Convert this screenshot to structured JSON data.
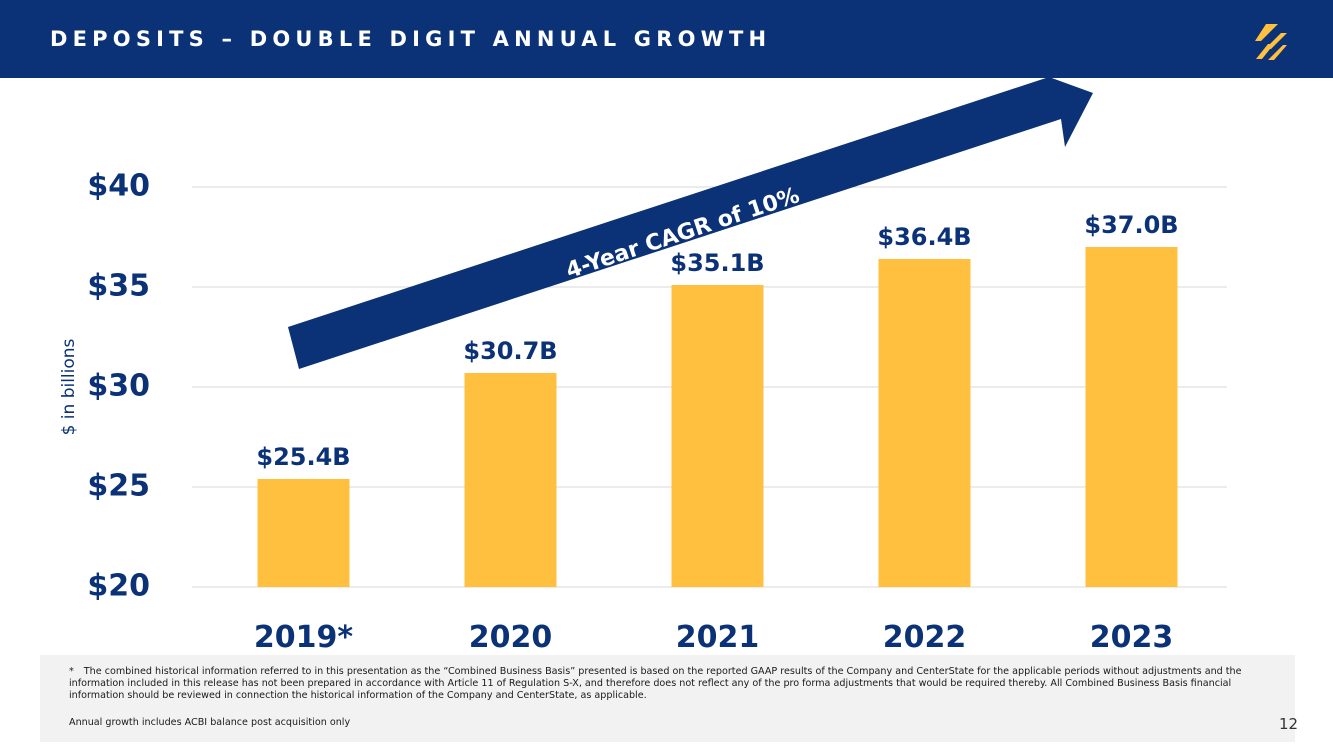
{
  "header": {
    "title": "DEPOSITS – DOUBLE DIGIT ANNUAL GROWTH"
  },
  "colors": {
    "navy": "#0b3277",
    "bar": "#ffc03f",
    "grid": "#d9d9d9",
    "logo": "#ffc03f"
  },
  "icons": {
    "logo": "company-logo-icon"
  },
  "chart_data": {
    "type": "bar",
    "title": "DEPOSITS – DOUBLE DIGIT ANNUAL GROWTH",
    "categories": [
      "2019*",
      "2020",
      "2021",
      "2022",
      "2023"
    ],
    "values": [
      25.4,
      30.7,
      35.1,
      36.4,
      37.0
    ],
    "data_labels": [
      "$25.4B",
      "$30.7B",
      "$35.1B",
      "$36.4B",
      "$37.0B"
    ],
    "ylabel": "$ in billions",
    "xlabel": "",
    "ylim": [
      20,
      40
    ],
    "yticks": [
      20,
      25,
      30,
      35,
      40
    ],
    "ytick_labels": [
      "$20",
      "$25",
      "$30",
      "$35",
      "$40"
    ],
    "grid": true,
    "annotation": {
      "text": "4-Year CAGR of 10%"
    }
  },
  "footnotes": {
    "star": "*",
    "combined_basis": "The combined historical information referred to in this presentation as the “Combined Business Basis” presented is based on the reported GAAP results of the Company and CenterState for the applicable periods without adjustments and the information included in this release has not been prepared in accordance with Article 11 of Regulation S-X, and therefore does not reflect any of the pro forma adjustments that would be required thereby.  All Combined Business Basis financial information should be reviewed in connection the historical information of the Company and CenterState, as applicable.",
    "annual_growth": "Annual growth includes ACBI balance post acquisition only"
  },
  "page_number": "12"
}
